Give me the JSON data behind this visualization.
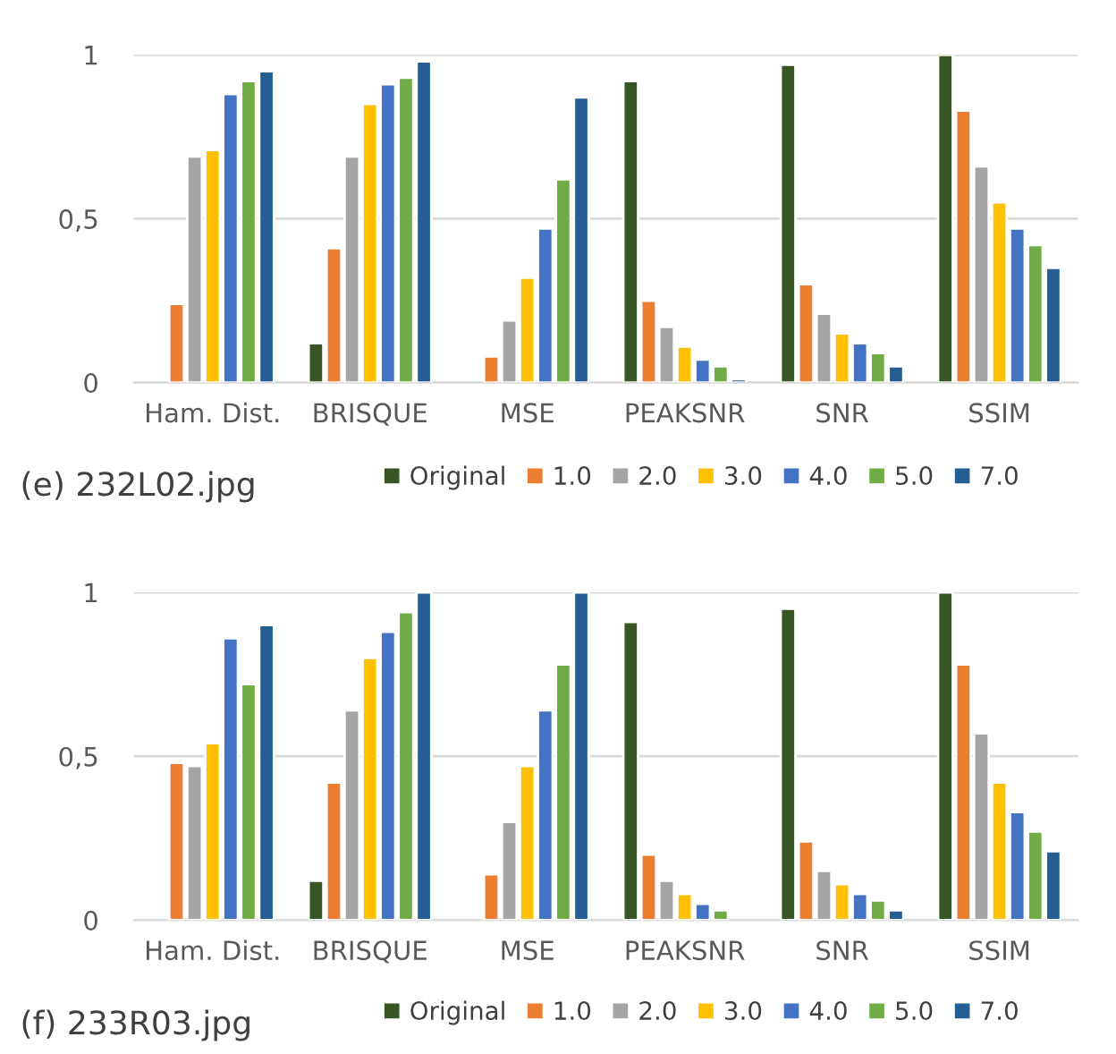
{
  "chart_data": [
    {
      "type": "bar",
      "title": "(e) 232L02.jpg",
      "categories": [
        "Ham. Dist.",
        "BRISQUE",
        "MSE",
        "PEAKSNR",
        "SNR",
        "SSIM"
      ],
      "ylim": [
        0,
        1
      ],
      "yticks": [
        0,
        {
          "value": 0.5,
          "label": "0,5"
        },
        1
      ],
      "grid": "y",
      "legend": "bottom",
      "series": [
        {
          "name": "Original",
          "color": "#375623",
          "values": [
            null,
            0.12,
            null,
            0.92,
            0.97,
            1.0
          ]
        },
        {
          "name": "1.0",
          "color": "#ed7d31",
          "values": [
            0.24,
            0.41,
            0.08,
            0.25,
            0.3,
            0.83
          ]
        },
        {
          "name": "2.0",
          "color": "#a5a5a5",
          "values": [
            0.69,
            0.69,
            0.19,
            0.17,
            0.21,
            0.66
          ]
        },
        {
          "name": "3.0",
          "color": "#ffc000",
          "values": [
            0.71,
            0.85,
            0.32,
            0.11,
            0.15,
            0.55
          ]
        },
        {
          "name": "4.0",
          "color": "#4472c4",
          "values": [
            0.88,
            0.91,
            0.47,
            0.07,
            0.12,
            0.47
          ]
        },
        {
          "name": "5.0",
          "color": "#70ad47",
          "values": [
            0.92,
            0.93,
            0.62,
            0.05,
            0.09,
            0.42
          ]
        },
        {
          "name": "7.0",
          "color": "#255e91",
          "values": [
            0.95,
            0.98,
            0.87,
            0.01,
            0.05,
            0.35
          ]
        }
      ]
    },
    {
      "type": "bar",
      "title": "(f) 233R03.jpg",
      "categories": [
        "Ham. Dist.",
        "BRISQUE",
        "MSE",
        "PEAKSNR",
        "SNR",
        "SSIM"
      ],
      "ylim": [
        0,
        1
      ],
      "yticks": [
        0,
        {
          "value": 0.5,
          "label": "0,5"
        },
        1
      ],
      "grid": "y",
      "legend": "bottom",
      "series": [
        {
          "name": "Original",
          "color": "#375623",
          "values": [
            null,
            0.12,
            null,
            0.91,
            0.95,
            1.0
          ]
        },
        {
          "name": "1.0",
          "color": "#ed7d31",
          "values": [
            0.48,
            0.42,
            0.14,
            0.2,
            0.24,
            0.78
          ]
        },
        {
          "name": "2.0",
          "color": "#a5a5a5",
          "values": [
            0.47,
            0.64,
            0.3,
            0.12,
            0.15,
            0.57
          ]
        },
        {
          "name": "3.0",
          "color": "#ffc000",
          "values": [
            0.54,
            0.8,
            0.47,
            0.08,
            0.11,
            0.42
          ]
        },
        {
          "name": "4.0",
          "color": "#4472c4",
          "values": [
            0.86,
            0.88,
            0.64,
            0.05,
            0.08,
            0.33
          ]
        },
        {
          "name": "5.0",
          "color": "#70ad47",
          "values": [
            0.72,
            0.94,
            0.78,
            0.03,
            0.06,
            0.27
          ]
        },
        {
          "name": "7.0",
          "color": "#255e91",
          "values": [
            0.9,
            1.0,
            1.0,
            null,
            0.03,
            0.21
          ]
        }
      ]
    }
  ]
}
